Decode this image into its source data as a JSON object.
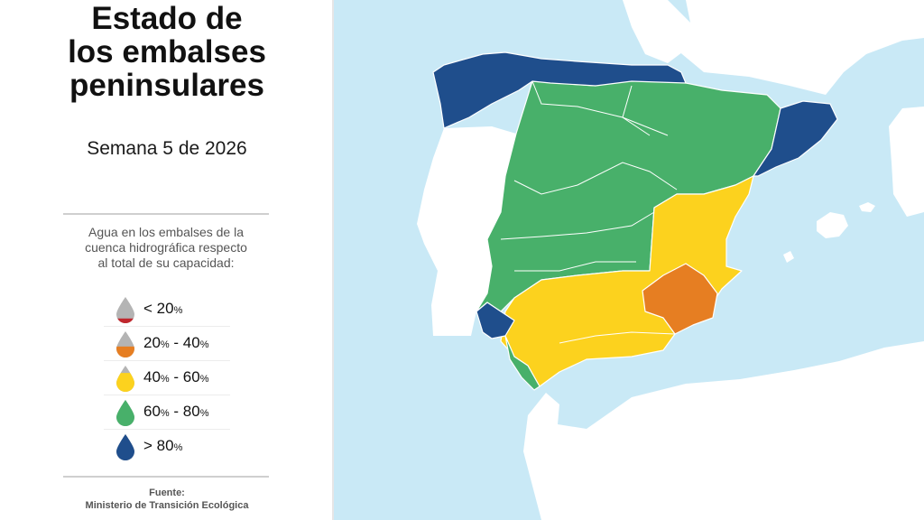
{
  "title_lines": [
    "Estado de",
    "los embalses",
    "peninsulares"
  ],
  "subtitle": "Semana 5 de 2026",
  "legend_description": [
    "Agua en los embalses de la",
    "cuenca hidrográfica respecto",
    "al total de su capacidad:"
  ],
  "legend": [
    {
      "symbol": "<",
      "value": "20",
      "unit": "%",
      "upper": "",
      "level": 0.18,
      "color": "#c0272d"
    },
    {
      "symbol": "",
      "value": "20",
      "unit": "%",
      "upper": "40",
      "level": 0.42,
      "color": "#e67e22"
    },
    {
      "symbol": "",
      "value": "40",
      "unit": "%",
      "upper": "60",
      "level": 0.72,
      "color": "#fcd21e"
    },
    {
      "symbol": "",
      "value": "60",
      "unit": "%",
      "upper": "80",
      "level": 1.0,
      "color": "#48b06a"
    },
    {
      "symbol": ">",
      "value": "80",
      "unit": "%",
      "upper": "",
      "level": 1.0,
      "color": "#1f4e8c"
    }
  ],
  "source_label": "Fuente:",
  "source_name": "Ministerio de Transición Ecológica",
  "colors": {
    "sea": "#c9e9f6",
    "land": "#ffffff",
    "drop_empty": "#b4b4b4",
    "under_20": "#c0272d",
    "range_20_40": "#e67e22",
    "range_40_60": "#fcd21e",
    "range_60_80": "#48b06a",
    "over_80": "#1f4e8c"
  },
  "basins": [
    {
      "name": "cantabrico",
      "category": "> 80%",
      "color": "#1f4e8c"
    },
    {
      "name": "cataluna",
      "category": "> 80%",
      "color": "#1f4e8c"
    },
    {
      "name": "tinto-odiel-piedras",
      "category": "> 80%",
      "color": "#1f4e8c"
    },
    {
      "name": "duero-tajo-guadiana-ebro",
      "category": "60% - 80%",
      "color": "#48b06a"
    },
    {
      "name": "guadalete-barbate",
      "category": "60% - 80%",
      "color": "#48b06a"
    },
    {
      "name": "jucar-guadalquivir-mediterranea",
      "category": "40% - 60%",
      "color": "#fcd21e"
    },
    {
      "name": "segura",
      "category": "20% - 40%",
      "color": "#e67e22"
    }
  ]
}
